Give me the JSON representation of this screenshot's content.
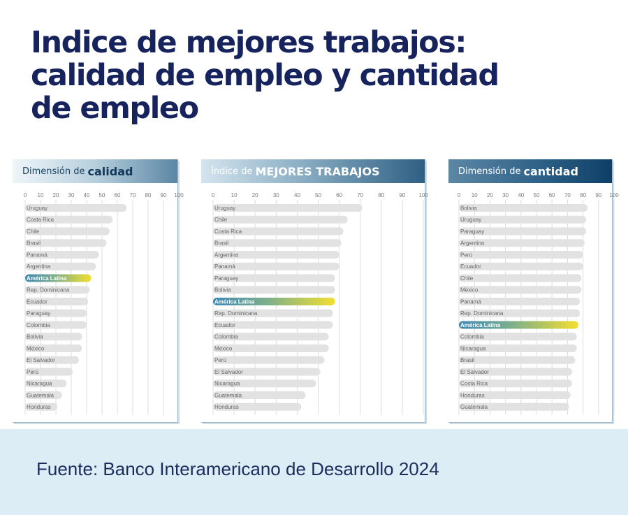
{
  "title": {
    "line1": "Indice de mejores trabajos:",
    "line2": "calidad de empleo y cantidad",
    "line3": "de empleo"
  },
  "footer": {
    "source": "Fuente: Banco Interamericano de Desarrollo 2024"
  },
  "colors": {
    "title": "#16235c",
    "bar": "#e2e2e2",
    "highlight_start": "#3f89b5",
    "highlight_end": "#f2df2e",
    "footer_band": "#dcedf6",
    "header_dark": "#2c5c7d"
  },
  "chart_data": [
    {
      "type": "bar",
      "orientation": "horizontal",
      "title_prefix": "Dimensión de",
      "title_emphasis": "calidad",
      "xlim": [
        0,
        100
      ],
      "ticks": [
        0,
        10,
        20,
        30,
        40,
        50,
        60,
        70,
        80,
        90,
        100
      ],
      "grid": true,
      "highlight": "América Latina",
      "categories": [
        "Uruguay",
        "Costa Rica",
        "Chile",
        "Brasil",
        "Panamá",
        "Argentina",
        "América Latina",
        "Rep. Dominicana",
        "Ecuador",
        "Paraguay",
        "Colombia",
        "Bolivia",
        "México",
        "El Salvador",
        "Perú",
        "Nicaragua",
        "Guatemala",
        "Honduras"
      ],
      "values": [
        66,
        57,
        55,
        53,
        48,
        46,
        43,
        42,
        41,
        40,
        40,
        37,
        37,
        35,
        31,
        27,
        24,
        21
      ]
    },
    {
      "type": "bar",
      "orientation": "horizontal",
      "title_prefix": "Índice de",
      "title_emphasis": "MEJORES TRABAJOS",
      "xlim": [
        0,
        100
      ],
      "ticks": [
        0,
        10,
        20,
        30,
        40,
        50,
        60,
        70,
        80,
        90,
        100
      ],
      "grid": true,
      "highlight": "América Latina",
      "categories": [
        "Uruguay",
        "Chile",
        "Costa Rica",
        "Brasil",
        "Argentina",
        "Panamá",
        "Paraguay",
        "Bolivia",
        "América Latina",
        "Rep. Dominicana",
        "Ecuador",
        "Colombia",
        "México",
        "Perú",
        "El Salvador",
        "Nicaragua",
        "Guatemala",
        "Honduras"
      ],
      "values": [
        71,
        64,
        62,
        61,
        60,
        60,
        58,
        58,
        58,
        57,
        57,
        55,
        55,
        53,
        51,
        49,
        44,
        42
      ]
    },
    {
      "type": "bar",
      "orientation": "horizontal",
      "title_prefix": "Dimensión de",
      "title_emphasis": "cantidad",
      "xlim": [
        0,
        100
      ],
      "ticks": [
        0,
        10,
        20,
        30,
        40,
        50,
        60,
        70,
        80,
        90,
        100
      ],
      "grid": true,
      "highlight": "América Latina",
      "categories": [
        "Bolivia",
        "Uruguay",
        "Paraguay",
        "Argentina",
        "Perú",
        "Ecuador",
        "Chile",
        "México",
        "Panamá",
        "Rep. Dominicana",
        "América Latina",
        "Colombia",
        "Nicaragua",
        "Brasil",
        "El Salvador",
        "Costa Rica",
        "Honduras",
        "Guatemala"
      ],
      "values": [
        83,
        82,
        82,
        81,
        80,
        80,
        79,
        79,
        78,
        78,
        77,
        76,
        76,
        75,
        73,
        73,
        72,
        71
      ]
    }
  ]
}
